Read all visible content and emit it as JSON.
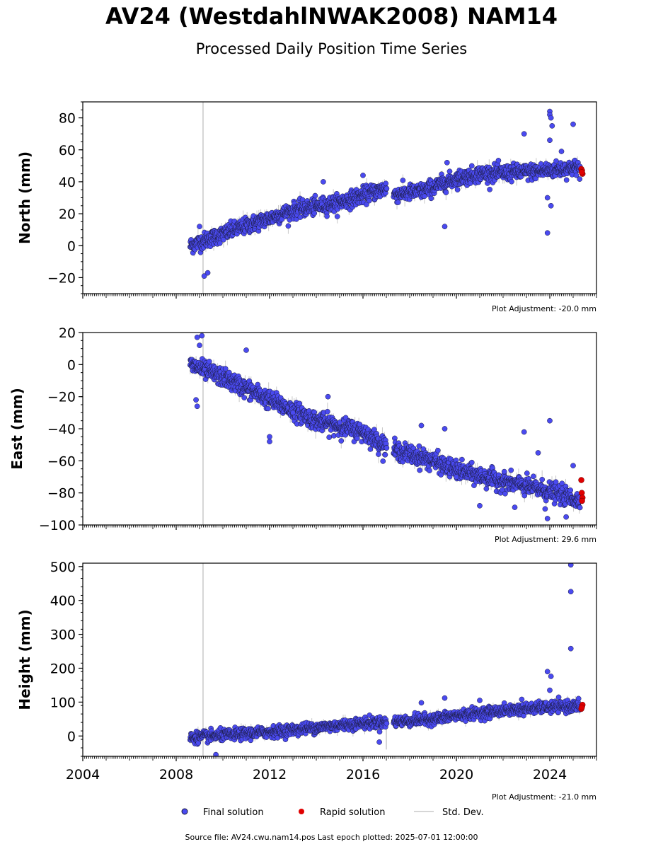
{
  "title": "AV24 (WestdahlNWAK2008) NAM14",
  "subtitle": "Processed Daily Position Time Series",
  "source_text": "Source file: AV24.cwu.nam14.pos  Last epoch plotted: 2025-07-01 12:00:00",
  "colors": {
    "final": "#4a4af0",
    "rapid": "#e00000",
    "std": "#c8c8c8",
    "edge": "#1a1a3a"
  },
  "legend": {
    "final": "Final solution",
    "rapid": "Rapid solution",
    "std": "Std. Dev."
  },
  "chart_data": [
    {
      "type": "scatter",
      "ylabel": "North (mm)",
      "adjustment": "Plot Adjustment: -20.0 mm",
      "xlim": [
        2004.0,
        2026.0
      ],
      "ylim": [
        -30,
        90
      ],
      "yticks": [
        -20,
        0,
        20,
        40,
        60,
        80
      ],
      "xticks": [
        2004,
        2008,
        2012,
        2016,
        2020,
        2024
      ],
      "show_xtick_labels": false,
      "trend": [
        [
          2008.6,
          0
        ],
        [
          2010.5,
          10
        ],
        [
          2013.0,
          22
        ],
        [
          2015.0,
          27
        ],
        [
          2017.0,
          36
        ],
        [
          2017.3,
          32
        ],
        [
          2018.5,
          34
        ],
        [
          2020.0,
          42
        ],
        [
          2021.0,
          45
        ],
        [
          2023.0,
          46
        ],
        [
          2025.3,
          49
        ]
      ],
      "noise": 2.5,
      "outliers": [
        [
          2009.2,
          -19
        ],
        [
          2009.35,
          -17
        ],
        [
          2009.0,
          12
        ],
        [
          2014.3,
          40
        ],
        [
          2016.0,
          44
        ],
        [
          2019.5,
          12
        ],
        [
          2019.6,
          52
        ],
        [
          2022.9,
          70
        ],
        [
          2024.0,
          84
        ],
        [
          2024.0,
          82
        ],
        [
          2024.05,
          80
        ],
        [
          2024.1,
          75
        ],
        [
          2024.0,
          66
        ],
        [
          2023.9,
          8
        ],
        [
          2024.05,
          25
        ],
        [
          2023.9,
          30
        ],
        [
          2025.0,
          76
        ],
        [
          2024.5,
          59
        ]
      ],
      "rapid": [
        [
          2025.35,
          48
        ],
        [
          2025.38,
          47
        ],
        [
          2025.4,
          45
        ],
        [
          2025.37,
          46
        ]
      ],
      "std_spikes": [
        [
          2009.15,
          -30,
          90
        ]
      ]
    },
    {
      "type": "scatter",
      "ylabel": "East (mm)",
      "adjustment": "Plot Adjustment: 29.6 mm",
      "xlim": [
        2004.0,
        2026.0
      ],
      "ylim": [
        -100,
        20
      ],
      "yticks": [
        -100,
        -80,
        -60,
        -40,
        -20,
        0,
        20
      ],
      "xticks": [
        2004,
        2008,
        2012,
        2016,
        2020,
        2024
      ],
      "show_xtick_labels": false,
      "trend": [
        [
          2008.6,
          0
        ],
        [
          2010.0,
          -8
        ],
        [
          2012.0,
          -22
        ],
        [
          2014.0,
          -35
        ],
        [
          2016.0,
          -42
        ],
        [
          2017.0,
          -51
        ],
        [
          2017.3,
          -53
        ],
        [
          2019.0,
          -60
        ],
        [
          2020.0,
          -66
        ],
        [
          2022.0,
          -73
        ],
        [
          2024.0,
          -79
        ],
        [
          2025.3,
          -85
        ]
      ],
      "noise": 2.8,
      "outliers": [
        [
          2008.9,
          17
        ],
        [
          2009.1,
          18
        ],
        [
          2009.0,
          12
        ],
        [
          2008.85,
          -22
        ],
        [
          2008.9,
          -26
        ],
        [
          2011.0,
          9
        ],
        [
          2012.0,
          -48
        ],
        [
          2012.0,
          -45
        ],
        [
          2013.0,
          -30
        ],
        [
          2014.5,
          -20
        ],
        [
          2018.5,
          -38
        ],
        [
          2019.5,
          -40
        ],
        [
          2020.0,
          -70
        ],
        [
          2021.0,
          -88
        ],
        [
          2022.5,
          -89
        ],
        [
          2022.9,
          -42
        ],
        [
          2023.5,
          -55
        ],
        [
          2023.8,
          -90
        ],
        [
          2024.0,
          -35
        ],
        [
          2023.9,
          -96
        ],
        [
          2025.0,
          -63
        ],
        [
          2024.7,
          -95
        ]
      ],
      "rapid": [
        [
          2025.35,
          -72
        ],
        [
          2025.37,
          -80
        ],
        [
          2025.4,
          -83
        ],
        [
          2025.38,
          -85
        ]
      ],
      "std_spikes": [
        [
          2009.15,
          -100,
          20
        ]
      ]
    },
    {
      "type": "scatter",
      "ylabel": "Height (mm)",
      "adjustment": "Plot Adjustment: -21.0 mm",
      "xlim": [
        2004.0,
        2026.0
      ],
      "ylim": [
        -60,
        510
      ],
      "yticks": [
        0,
        100,
        200,
        300,
        400,
        500
      ],
      "xticks": [
        2004,
        2008,
        2012,
        2016,
        2020,
        2024
      ],
      "show_xtick_labels": true,
      "trend": [
        [
          2008.6,
          -5
        ],
        [
          2012.0,
          12
        ],
        [
          2016.0,
          38
        ],
        [
          2017.0,
          40
        ],
        [
          2017.3,
          42
        ],
        [
          2019.0,
          50
        ],
        [
          2020.0,
          60
        ],
        [
          2022.0,
          75
        ],
        [
          2024.0,
          85
        ],
        [
          2025.3,
          88
        ]
      ],
      "noise": 8,
      "outliers": [
        [
          2009.7,
          -55
        ],
        [
          2016.7,
          -18
        ],
        [
          2018.5,
          98
        ],
        [
          2019.5,
          112
        ],
        [
          2021.0,
          105
        ],
        [
          2022.8,
          108
        ],
        [
          2023.9,
          190
        ],
        [
          2024.0,
          135
        ],
        [
          2024.05,
          176
        ],
        [
          2024.9,
          505
        ],
        [
          2024.9,
          426
        ],
        [
          2024.9,
          258
        ]
      ],
      "rapid": [
        [
          2025.35,
          80
        ],
        [
          2025.38,
          88
        ],
        [
          2025.4,
          92
        ],
        [
          2025.37,
          84
        ]
      ],
      "std_spikes": [
        [
          2009.15,
          -60,
          510
        ],
        [
          2017.0,
          -40,
          60
        ]
      ]
    }
  ]
}
